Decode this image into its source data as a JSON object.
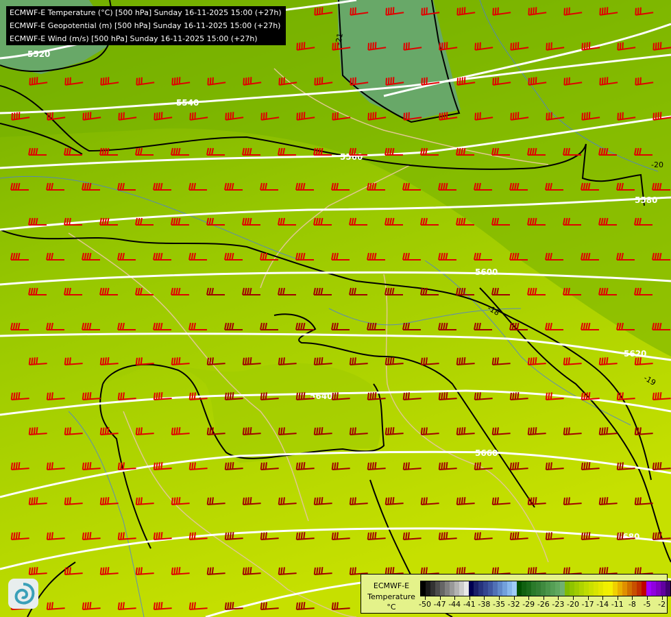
{
  "header": {
    "lines": [
      "ECMWF-E Temperature (°C) [500 hPa] Sunday 16-11-2025 15:00 (+27h)",
      "ECMWF-E Geopotential (m) [500 hPa] Sunday 16-11-2025 15:00 (+27h)",
      "ECMWF-E Wind (m/s) [500 hPa] Sunday 16-11-2025 15:00 (+27h)"
    ]
  },
  "map": {
    "geopotential_labels": [
      "5520",
      "5540",
      "5560",
      "5580",
      "5600",
      "5620",
      "5640",
      "5660",
      "5680"
    ],
    "temperature_labels": [
      "-21",
      "-20",
      "-18",
      "-19"
    ],
    "colors": {
      "geopotential": "#ffffff",
      "isotherm": "#000000",
      "wind_barb": "#e00000",
      "wind_barb_dark": "#a00000",
      "borders": "#e0c890",
      "rivers": "#4a7ae0"
    }
  },
  "legend": {
    "model": "ECMWF-E",
    "variable": "Temperature",
    "unit": "°C",
    "ticks": [
      "-50",
      "-47",
      "-44",
      "-41",
      "-38",
      "-35",
      "-32",
      "-29",
      "-26",
      "-23",
      "-20",
      "-17",
      "-14",
      "-11",
      "-8",
      "-5",
      "-2"
    ],
    "colors": [
      "#000000",
      "#1a1a1a",
      "#333333",
      "#4d4d4d",
      "#666666",
      "#808080",
      "#999999",
      "#b3b3b3",
      "#cccccc",
      "#e8e8e8",
      "#000050",
      "#1a2068",
      "#26337d",
      "#33458f",
      "#3f57a0",
      "#5070b5",
      "#6088c8",
      "#72a0db",
      "#88b8ec",
      "#a0ccf8",
      "#005000",
      "#106010",
      "#1a6a1a",
      "#2a7a2a",
      "#337f33",
      "#3f8a3f",
      "#4a954a",
      "#559f55",
      "#60a860",
      "#70b070",
      "#80bb00",
      "#90c400",
      "#a0cc00",
      "#b0d400",
      "#bedc00",
      "#cbe000",
      "#d8e400",
      "#e4e800",
      "#f0f000",
      "#f4f000",
      "#f0d000",
      "#e8b000",
      "#e09000",
      "#d07000",
      "#c85000",
      "#c03000",
      "#c00000",
      "#a000ff",
      "#9000e0",
      "#8000c0",
      "#6000a0",
      "#400070"
    ]
  },
  "logo": {
    "icon": "ecmwf-swirl-logo"
  }
}
